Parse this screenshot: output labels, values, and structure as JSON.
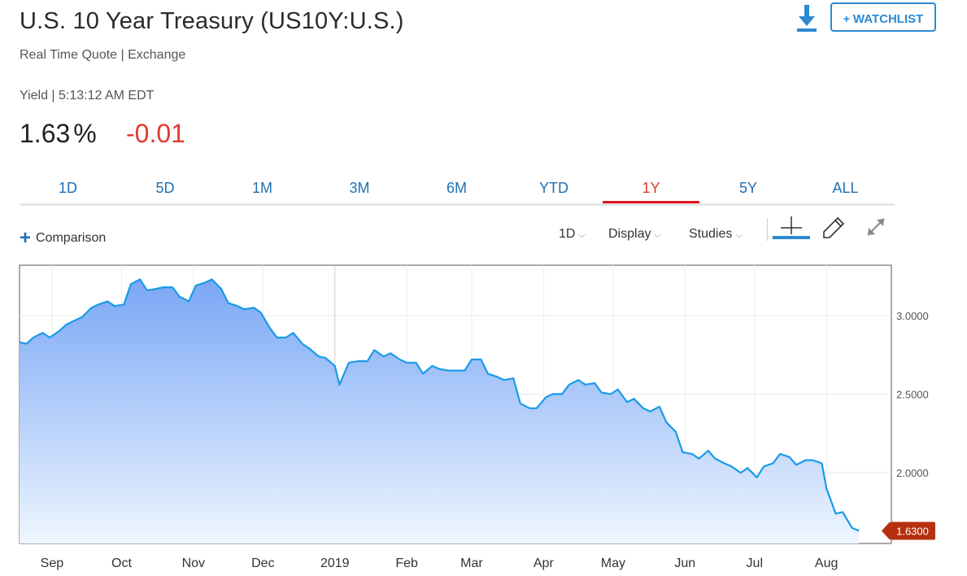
{
  "header": {
    "title": "U.S. 10 Year Treasury (US10Y:U.S.)",
    "subtitle": "Real Time Quote | Exchange",
    "yield_line": "Yield | 5:13:12 AM EDT",
    "price": "1.63",
    "price_unit": "%",
    "change": "-0.01",
    "watchlist_label": "WATCHLIST",
    "watchlist_plus": "+",
    "download_icon": "download-icon"
  },
  "tabs": [
    {
      "label": "1D"
    },
    {
      "label": "5D"
    },
    {
      "label": "1M"
    },
    {
      "label": "3M"
    },
    {
      "label": "6M"
    },
    {
      "label": "YTD"
    },
    {
      "label": "1Y",
      "active": true
    },
    {
      "label": "5Y"
    },
    {
      "label": "ALL"
    }
  ],
  "toolbar": {
    "comparison_label": "Comparison",
    "interval_label": "1D",
    "display_label": "Display",
    "studies_label": "Studies",
    "caret": "⌵"
  },
  "colors": {
    "accent_blue": "#1f6fb2",
    "line_blue": "#1a9ae8",
    "negative_red": "#e03a2f",
    "active_tab_red": "#e0151f",
    "last_price_badge": "#b5300f"
  },
  "chart_data": {
    "type": "area",
    "x_tick_labels": [
      "Sep",
      "Oct",
      "Nov",
      "Dec",
      "2019",
      "Feb",
      "Mar",
      "Apr",
      "May",
      "Jun",
      "Jul",
      "Aug"
    ],
    "y_tick_labels": [
      "3.0000",
      "2.5000",
      "2.0000"
    ],
    "y_ticks": [
      3.0,
      2.5,
      2.0
    ],
    "ylim": [
      1.55,
      3.32
    ],
    "x_range": [
      "2018-08-18",
      "2019-08-29"
    ],
    "last_value_label": "1.6300",
    "grid": true,
    "series": [
      {
        "values": [
          [
            "2018-08-18",
            2.83
          ],
          [
            "2018-08-21",
            2.82
          ],
          [
            "2018-08-24",
            2.86
          ],
          [
            "2018-08-28",
            2.89
          ],
          [
            "2018-08-31",
            2.86
          ],
          [
            "2018-09-04",
            2.9
          ],
          [
            "2018-09-07",
            2.94
          ],
          [
            "2018-09-11",
            2.97
          ],
          [
            "2018-09-14",
            2.99
          ],
          [
            "2018-09-18",
            3.05
          ],
          [
            "2018-09-21",
            3.07
          ],
          [
            "2018-09-25",
            3.09
          ],
          [
            "2018-09-28",
            3.06
          ],
          [
            "2018-10-02",
            3.07
          ],
          [
            "2018-10-05",
            3.2
          ],
          [
            "2018-10-09",
            3.23
          ],
          [
            "2018-10-12",
            3.16
          ],
          [
            "2018-10-16",
            3.17
          ],
          [
            "2018-10-19",
            3.18
          ],
          [
            "2018-10-23",
            3.18
          ],
          [
            "2018-10-26",
            3.12
          ],
          [
            "2018-10-30",
            3.09
          ],
          [
            "2018-11-02",
            3.19
          ],
          [
            "2018-11-06",
            3.21
          ],
          [
            "2018-11-09",
            3.23
          ],
          [
            "2018-11-13",
            3.17
          ],
          [
            "2018-11-16",
            3.08
          ],
          [
            "2018-11-20",
            3.06
          ],
          [
            "2018-11-23",
            3.04
          ],
          [
            "2018-11-27",
            3.05
          ],
          [
            "2018-11-30",
            3.02
          ],
          [
            "2018-12-04",
            2.92
          ],
          [
            "2018-12-07",
            2.86
          ],
          [
            "2018-12-11",
            2.86
          ],
          [
            "2018-12-14",
            2.89
          ],
          [
            "2018-12-18",
            2.82
          ],
          [
            "2018-12-21",
            2.79
          ],
          [
            "2018-12-25",
            2.74
          ],
          [
            "2018-12-28",
            2.73
          ],
          [
            "2019-01-01",
            2.68
          ],
          [
            "2019-01-03",
            2.56
          ],
          [
            "2019-01-07",
            2.7
          ],
          [
            "2019-01-11",
            2.71
          ],
          [
            "2019-01-15",
            2.71
          ],
          [
            "2019-01-18",
            2.78
          ],
          [
            "2019-01-22",
            2.74
          ],
          [
            "2019-01-25",
            2.76
          ],
          [
            "2019-01-29",
            2.72
          ],
          [
            "2019-02-01",
            2.7
          ],
          [
            "2019-02-05",
            2.7
          ],
          [
            "2019-02-08",
            2.63
          ],
          [
            "2019-02-12",
            2.68
          ],
          [
            "2019-02-15",
            2.66
          ],
          [
            "2019-02-19",
            2.65
          ],
          [
            "2019-02-22",
            2.65
          ],
          [
            "2019-02-26",
            2.65
          ],
          [
            "2019-03-01",
            2.72
          ],
          [
            "2019-03-05",
            2.72
          ],
          [
            "2019-03-08",
            2.63
          ],
          [
            "2019-03-12",
            2.61
          ],
          [
            "2019-03-15",
            2.59
          ],
          [
            "2019-03-19",
            2.6
          ],
          [
            "2019-03-22",
            2.44
          ],
          [
            "2019-03-26",
            2.41
          ],
          [
            "2019-03-29",
            2.41
          ],
          [
            "2019-04-02",
            2.48
          ],
          [
            "2019-04-05",
            2.5
          ],
          [
            "2019-04-09",
            2.5
          ],
          [
            "2019-04-12",
            2.56
          ],
          [
            "2019-04-16",
            2.59
          ],
          [
            "2019-04-19",
            2.56
          ],
          [
            "2019-04-23",
            2.57
          ],
          [
            "2019-04-26",
            2.51
          ],
          [
            "2019-04-30",
            2.5
          ],
          [
            "2019-05-03",
            2.53
          ],
          [
            "2019-05-07",
            2.45
          ],
          [
            "2019-05-10",
            2.47
          ],
          [
            "2019-05-14",
            2.41
          ],
          [
            "2019-05-17",
            2.39
          ],
          [
            "2019-05-21",
            2.42
          ],
          [
            "2019-05-24",
            2.32
          ],
          [
            "2019-05-28",
            2.26
          ],
          [
            "2019-05-31",
            2.13
          ],
          [
            "2019-06-04",
            2.12
          ],
          [
            "2019-06-07",
            2.09
          ],
          [
            "2019-06-11",
            2.14
          ],
          [
            "2019-06-14",
            2.09
          ],
          [
            "2019-06-18",
            2.06
          ],
          [
            "2019-06-21",
            2.04
          ],
          [
            "2019-06-25",
            2.0
          ],
          [
            "2019-06-28",
            2.03
          ],
          [
            "2019-07-02",
            1.97
          ],
          [
            "2019-07-05",
            2.04
          ],
          [
            "2019-07-09",
            2.06
          ],
          [
            "2019-07-12",
            2.12
          ],
          [
            "2019-07-16",
            2.1
          ],
          [
            "2019-07-19",
            2.05
          ],
          [
            "2019-07-23",
            2.08
          ],
          [
            "2019-07-26",
            2.08
          ],
          [
            "2019-07-30",
            2.06
          ],
          [
            "2019-08-01",
            1.9
          ],
          [
            "2019-08-05",
            1.74
          ],
          [
            "2019-08-08",
            1.75
          ],
          [
            "2019-08-12",
            1.65
          ],
          [
            "2019-08-15",
            1.63
          ]
        ]
      }
    ]
  }
}
